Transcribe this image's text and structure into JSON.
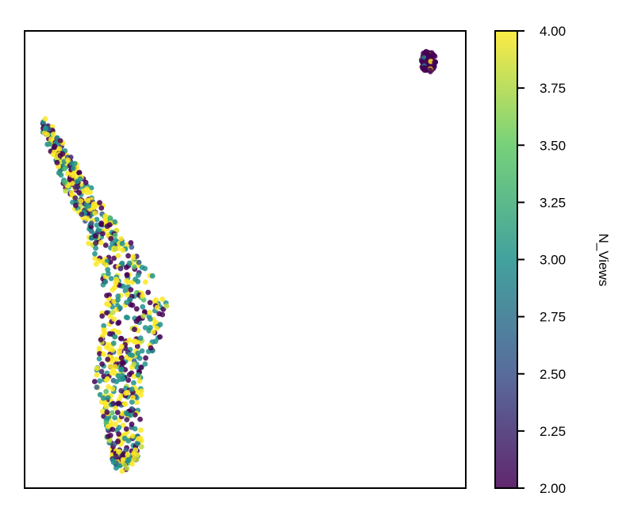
{
  "chart_data": {
    "type": "scatter",
    "title": "",
    "xlabel": "",
    "ylabel": "",
    "x_ticks_visible": false,
    "y_ticks_visible": false,
    "grid": false,
    "xlim": [
      0,
      100
    ],
    "ylim": [
      0,
      100
    ],
    "colorbar": {
      "label": "N_Views",
      "range": [
        2.0,
        4.0
      ],
      "colormap": "viridis",
      "ticks": [
        "2.00",
        "2.25",
        "2.50",
        "2.75",
        "3.00",
        "3.25",
        "3.50",
        "3.75",
        "4.00"
      ],
      "stops": [
        "#440154",
        "#3b528b",
        "#21918c",
        "#5ec962",
        "#fde725"
      ]
    },
    "clusters": [
      {
        "name": "",
        "description": "small compact blob",
        "center": [
          91.5,
          93.3
        ],
        "radius": [
          1.8,
          2.3
        ],
        "dominant_value": 2.0
      },
      {
        "name": "",
        "description": "elongated diagonal strip",
        "path": [
          [
            4.5,
            80
          ],
          [
            8.5,
            72
          ],
          [
            12,
            65
          ],
          [
            17,
            58
          ],
          [
            21,
            50
          ],
          [
            25,
            40
          ],
          [
            24,
            32
          ],
          [
            21,
            25
          ],
          [
            22,
            17
          ],
          [
            23,
            8
          ],
          [
            22,
            5
          ]
        ],
        "dominant_value": "mixed 2-4"
      }
    ]
  }
}
